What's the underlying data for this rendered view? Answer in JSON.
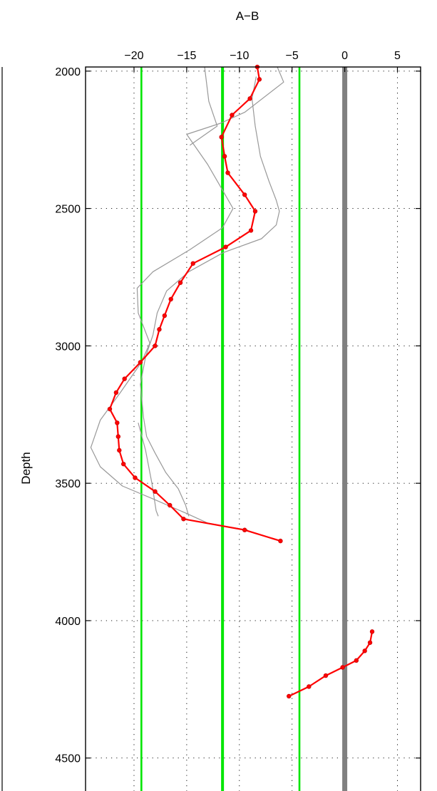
{
  "chart_data": {
    "type": "line",
    "title": "A−B",
    "xlabel": "",
    "ylabel": "Depth",
    "xlim": [
      -24.6,
      7.2
    ],
    "ylim": [
      4620,
      1985
    ],
    "y_reversed": true,
    "x_axis_position": "top",
    "grid": true,
    "x_ticks": [
      -20,
      -15,
      -10,
      -5,
      0,
      5
    ],
    "x_tick_labels": [
      "−20",
      "−15",
      "−10",
      "−5",
      "0",
      "5"
    ],
    "y_ticks": [
      2000,
      2500,
      3000,
      3500,
      4000,
      4500
    ],
    "y_tick_labels": [
      "2000",
      "2500",
      "3000",
      "3500",
      "4000",
      "4500"
    ],
    "reference_lines": [
      {
        "x": -19.3,
        "color": "#00e600",
        "width": "thin"
      },
      {
        "x": -11.6,
        "color": "#00e600",
        "width": "thick"
      },
      {
        "x": -4.3,
        "color": "#00e600",
        "width": "thin"
      },
      {
        "x": 0,
        "color": "#808080",
        "width": "very-thick"
      }
    ],
    "series": [
      {
        "color": "#ff0000",
        "markers": true,
        "segments": [
          [
            [
              -8.3,
              1985
            ],
            [
              -8.1,
              2030
            ],
            [
              -9.0,
              2100
            ],
            [
              -10.7,
              2160
            ],
            [
              -11.7,
              2240
            ],
            [
              -11.4,
              2310
            ],
            [
              -11.1,
              2370
            ],
            [
              -9.5,
              2450
            ],
            [
              -8.5,
              2510
            ],
            [
              -8.9,
              2580
            ],
            [
              -11.3,
              2640
            ],
            [
              -14.4,
              2700
            ],
            [
              -15.6,
              2770
            ],
            [
              -16.5,
              2830
            ],
            [
              -17.1,
              2890
            ],
            [
              -17.6,
              2940
            ],
            [
              -18.0,
              3000
            ],
            [
              -19.4,
              3060
            ],
            [
              -20.9,
              3120
            ],
            [
              -21.7,
              3170
            ],
            [
              -22.3,
              3230
            ],
            [
              -21.6,
              3280
            ],
            [
              -21.5,
              3330
            ],
            [
              -21.4,
              3380
            ],
            [
              -21.0,
              3430
            ],
            [
              -19.9,
              3480
            ],
            [
              -18.0,
              3530
            ],
            [
              -16.6,
              3580
            ],
            [
              -15.3,
              3630
            ],
            [
              -9.5,
              3670
            ],
            [
              -6.1,
              3710
            ]
          ],
          [
            [
              2.6,
              4040
            ],
            [
              2.4,
              4080
            ],
            [
              1.9,
              4110
            ],
            [
              1.1,
              4145
            ],
            [
              -0.2,
              4170
            ],
            [
              -1.8,
              4200
            ],
            [
              -3.4,
              4240
            ],
            [
              -5.3,
              4275
            ]
          ]
        ]
      },
      {
        "color": "#999999",
        "markers": false,
        "segments": [
          [
            [
              -13.3,
              1985
            ],
            [
              -12.9,
              2110
            ],
            [
              -12.1,
              2200
            ],
            [
              -14.7,
              2270
            ]
          ],
          [
            [
              -6.4,
              1985
            ],
            [
              -5.8,
              2040
            ],
            [
              -9.5,
              2150
            ],
            [
              -11.8,
              2190
            ],
            [
              -15.0,
              2230
            ],
            [
              -13.0,
              2340
            ],
            [
              -11.8,
              2420
            ],
            [
              -10.6,
              2500
            ],
            [
              -11.6,
              2570
            ],
            [
              -14.7,
              2650
            ],
            [
              -18.2,
              2730
            ],
            [
              -19.7,
              2790
            ],
            [
              -19.6,
              2880
            ],
            [
              -18.5,
              2990
            ],
            [
              -19.3,
              3060
            ],
            [
              -21.3,
              3170
            ],
            [
              -23.2,
              3270
            ],
            [
              -24.1,
              3370
            ],
            [
              -23.2,
              3440
            ],
            [
              -21.1,
              3510
            ],
            [
              -18.0,
              3560
            ],
            [
              -15.0,
              3610
            ],
            [
              -13.0,
              3645
            ],
            [
              -10.8,
              3660
            ],
            [
              -9.2,
              3670
            ]
          ],
          [
            [
              -8.4,
              2020
            ],
            [
              -8.8,
              2100
            ],
            [
              -8.5,
              2200
            ],
            [
              -8.0,
              2310
            ],
            [
              -7.2,
              2400
            ],
            [
              -6.5,
              2470
            ],
            [
              -6.2,
              2510
            ],
            [
              -6.5,
              2560
            ],
            [
              -7.9,
              2610
            ],
            [
              -11.5,
              2660
            ],
            [
              -14.8,
              2730
            ],
            [
              -16.9,
              2800
            ],
            [
              -17.8,
              2880
            ],
            [
              -18.2,
              2960
            ],
            [
              -18.9,
              3040
            ],
            [
              -19.4,
              3140
            ],
            [
              -19.1,
              3260
            ],
            [
              -18.8,
              3330
            ],
            [
              -18.0,
              3390
            ],
            [
              -17.0,
              3460
            ],
            [
              -15.8,
              3520
            ],
            [
              -15.1,
              3580
            ],
            [
              -14.8,
              3620
            ]
          ],
          [
            [
              -19.6,
              3280
            ],
            [
              -18.9,
              3380
            ],
            [
              -18.3,
              3500
            ],
            [
              -17.9,
              3600
            ],
            [
              -17.7,
              3620
            ]
          ]
        ]
      }
    ]
  }
}
